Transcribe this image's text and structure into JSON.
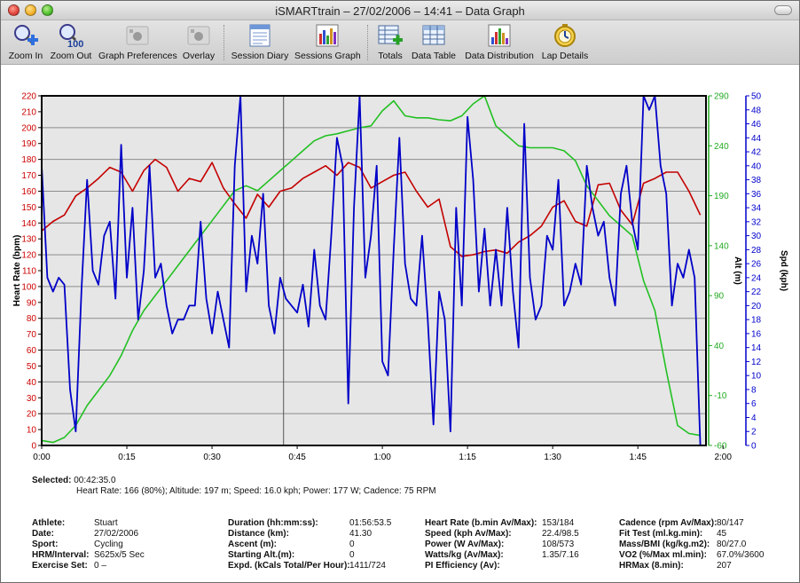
{
  "window": {
    "title": "iSMARTtrain – 27/02/2006 – 14:41 – Data Graph"
  },
  "toolbar": {
    "buttons": [
      {
        "id": "zoom-in",
        "label": "Zoom In",
        "icon": "magnifier-plus-icon"
      },
      {
        "id": "zoom-out",
        "label": "Zoom Out",
        "icon": "magnifier-100-icon"
      },
      {
        "id": "graph-preferences",
        "label": "Graph Preferences",
        "icon": "apple-prefs-icon"
      },
      {
        "id": "overlay",
        "label": "Overlay",
        "icon": "apple-overlay-icon"
      },
      {
        "id": "session-diary",
        "label": "Session Diary",
        "icon": "diary-icon"
      },
      {
        "id": "sessions-graph",
        "label": "Sessions Graph",
        "icon": "bar-chart-icon"
      },
      {
        "id": "totals",
        "label": "Totals",
        "icon": "table-plus-icon"
      },
      {
        "id": "data-table",
        "label": "Data Table",
        "icon": "table-icon"
      },
      {
        "id": "data-distribution",
        "label": "Data Distribution",
        "icon": "distribution-icon"
      },
      {
        "id": "lap-details",
        "label": "Lap Details",
        "icon": "stopwatch-icon"
      }
    ]
  },
  "chart_data": {
    "type": "line",
    "x_unit": "time (h:mm)",
    "xlim": [
      0,
      117
    ],
    "x_ticks": [
      "0:00",
      "0:15",
      "0:30",
      "0:45",
      "1:00",
      "1:15",
      "1:30",
      "1:45",
      "2:00"
    ],
    "cursor_x": 42.6,
    "axes": {
      "left": {
        "label": "Heart Rate (bpm)",
        "min": 0,
        "max": 220,
        "step": 10,
        "color": "#cc0000"
      },
      "right_alt": {
        "label": "Alt (m)",
        "min": -60,
        "max": 290,
        "ticks": [
          -60,
          -10,
          40,
          90,
          140,
          190,
          240,
          290
        ],
        "color": "#22aa22"
      },
      "right_spd": {
        "label": "Spd (kph)",
        "min": 0,
        "max": 50,
        "step": 2,
        "color": "#0000cc"
      }
    },
    "grid": true,
    "series": [
      {
        "axis": "left",
        "color": "#c40000",
        "x": [
          0,
          2,
          4,
          6,
          8,
          10,
          12,
          14,
          16,
          18,
          20,
          22,
          24,
          26,
          28,
          30,
          32,
          34,
          36,
          38,
          40,
          42,
          44,
          46,
          48,
          50,
          52,
          54,
          56,
          58,
          60,
          62,
          64,
          66,
          68,
          70,
          72,
          74,
          76,
          78,
          80,
          82,
          84,
          86,
          88,
          90,
          92,
          94,
          96,
          98,
          100,
          102,
          104,
          106,
          108,
          110,
          112,
          114,
          116
        ],
        "values": [
          135,
          141,
          145,
          157,
          162,
          168,
          175,
          172,
          160,
          173,
          180,
          175,
          160,
          168,
          166,
          178,
          162,
          152,
          143,
          158,
          150,
          160,
          162,
          168,
          172,
          176,
          170,
          178,
          175,
          162,
          166,
          170,
          172,
          160,
          150,
          155,
          125,
          119,
          120,
          122,
          123,
          121,
          128,
          132,
          138,
          150,
          154,
          141,
          138,
          164,
          165,
          148,
          139,
          165,
          168,
          172,
          172,
          160,
          145
        ]
      },
      {
        "axis": "right_alt",
        "color": "#22c022",
        "x": [
          0,
          2,
          4,
          6,
          8,
          10,
          12,
          14,
          16,
          18,
          20,
          22,
          24,
          26,
          28,
          30,
          32,
          34,
          36,
          38,
          40,
          42,
          44,
          46,
          48,
          50,
          52,
          54,
          56,
          58,
          60,
          62,
          64,
          66,
          68,
          70,
          72,
          74,
          76,
          78,
          80,
          82,
          84,
          86,
          88,
          90,
          92,
          94,
          96,
          98,
          100,
          102,
          104,
          106,
          108,
          110,
          112,
          114,
          116
        ],
        "values": [
          -55,
          -57,
          -52,
          -40,
          -20,
          -5,
          10,
          30,
          55,
          75,
          90,
          105,
          120,
          135,
          150,
          165,
          180,
          195,
          200,
          195,
          205,
          215,
          225,
          235,
          245,
          250,
          252,
          255,
          258,
          260,
          275,
          285,
          270,
          268,
          268,
          266,
          265,
          270,
          282,
          290,
          260,
          250,
          240,
          238,
          238,
          238,
          235,
          225,
          200,
          185,
          170,
          160,
          150,
          105,
          75,
          15,
          -40,
          -48,
          -50
        ]
      },
      {
        "axis": "right_spd",
        "color": "#0000c8",
        "x": [
          0,
          1,
          2,
          3,
          4,
          5,
          6,
          7,
          8,
          9,
          10,
          11,
          12,
          13,
          14,
          15,
          16,
          17,
          18,
          19,
          20,
          21,
          22,
          23,
          24,
          25,
          26,
          27,
          28,
          29,
          30,
          31,
          32,
          33,
          34,
          35,
          36,
          37,
          38,
          39,
          40,
          41,
          42,
          43,
          44,
          45,
          46,
          47,
          48,
          49,
          50,
          51,
          52,
          53,
          54,
          55,
          56,
          57,
          58,
          59,
          60,
          61,
          62,
          63,
          64,
          65,
          66,
          67,
          68,
          69,
          70,
          71,
          72,
          73,
          74,
          75,
          76,
          77,
          78,
          79,
          80,
          81,
          82,
          83,
          84,
          85,
          86,
          87,
          88,
          89,
          90,
          91,
          92,
          93,
          94,
          95,
          96,
          97,
          98,
          99,
          100,
          101,
          102,
          103,
          104,
          105,
          106,
          107,
          108,
          109,
          110,
          111,
          112,
          113,
          114,
          115,
          116,
          117
        ],
        "values": [
          40,
          24,
          22,
          24,
          23,
          8,
          2,
          22,
          38,
          25,
          23,
          30,
          32,
          21,
          43,
          24,
          34,
          18,
          25,
          40,
          24,
          26,
          20,
          16,
          18,
          18,
          20,
          20,
          32,
          21,
          16,
          22,
          18,
          14,
          40,
          50,
          22,
          30,
          26,
          36,
          20,
          16,
          24,
          21,
          20,
          19,
          23,
          17,
          28,
          20,
          18,
          30,
          44,
          40,
          6,
          34,
          50,
          24,
          30,
          40,
          12,
          10,
          28,
          44,
          26,
          21,
          20,
          30,
          18,
          3,
          22,
          18,
          2,
          34,
          20,
          47,
          38,
          22,
          31,
          20,
          28,
          20,
          34,
          22,
          14,
          46,
          24,
          18,
          20,
          30,
          28,
          38,
          20,
          22,
          26,
          23,
          40,
          34,
          30,
          32,
          24,
          20,
          36,
          40,
          32,
          28,
          50,
          48,
          50,
          40,
          36,
          20,
          26,
          24,
          28,
          24,
          0,
          0
        ]
      }
    ]
  },
  "selected": {
    "label": "Selected:",
    "value": "00:42:35.0",
    "detail": "Heart Rate: 166 (80%); Altitude: 197 m; Speed: 16.0 kph; Power: 177 W; Cadence: 75 RPM"
  },
  "stats": {
    "col1": [
      {
        "k": "Athlete:",
        "v": "Stuart"
      },
      {
        "k": "Date:",
        "v": "27/02/2006"
      },
      {
        "k": "Sport:",
        "v": "Cycling"
      },
      {
        "k": "HRM/Interval:",
        "v": "S625x/5 Sec"
      },
      {
        "k": "Exercise Set:",
        "v": "0 –"
      }
    ],
    "col2": [
      {
        "k": "Duration (hh:mm:ss):",
        "v": "01:56:53.5"
      },
      {
        "k": "Distance (km):",
        "v": "41.30"
      },
      {
        "k": "Ascent (m):",
        "v": "0"
      },
      {
        "k": "Starting Alt.(m):",
        "v": "0"
      },
      {
        "k": "Expd. (kCals Total/Per Hour):",
        "v": "1411/724"
      }
    ],
    "col3": [
      {
        "k": "Heart Rate (b.min Av/Max):",
        "v": "153/184"
      },
      {
        "k": "Speed (kph Av/Max):",
        "v": "22.4/98.5"
      },
      {
        "k": "Power (W Av/Max):",
        "v": "108/573"
      },
      {
        "k": "Watts/kg (Av/Max):",
        "v": "1.35/7.16"
      },
      {
        "k": "PI Efficiency (Av):",
        "v": ""
      }
    ],
    "col4": [
      {
        "k": "Cadence (rpm Av/Max):",
        "v": "80/147"
      },
      {
        "k": "Fit Test (ml.kg.min):",
        "v": "45"
      },
      {
        "k": "Mass/BMI (kg/kg.m2):",
        "v": "80/27.0"
      },
      {
        "k": "VO2 (%/Max ml.min):",
        "v": "67.0%/3600"
      },
      {
        "k": "HRMax (8.min):",
        "v": "207"
      }
    ]
  }
}
